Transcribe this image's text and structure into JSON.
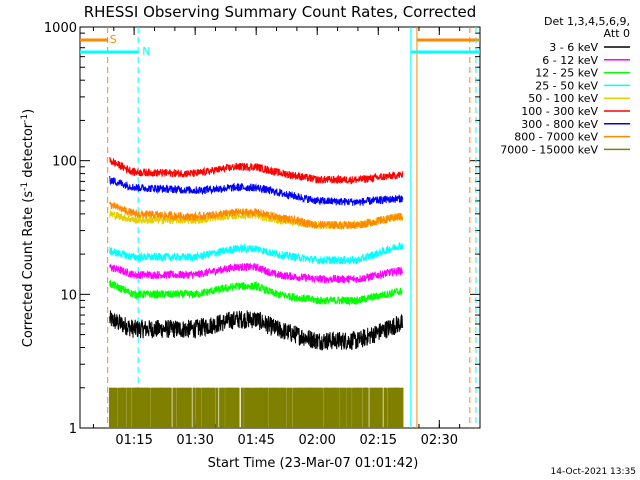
{
  "chart_data": {
    "type": "line",
    "title": "RHESSI Observing Summary Count Rates, Corrected",
    "xlabel": "Start Time (23-Mar-07 01:01:42)",
    "ylabel": "Corrected Count Rate (s⁻¹ detector⁻¹)",
    "ylabel_main": "Corrected Count Rate (s",
    "ylabel_sup1": "-1",
    "ylabel_mid": " detector",
    "ylabel_sup2": "-1",
    "ylabel_end": ")",
    "y_scale": "log",
    "ylim": [
      1,
      1000
    ],
    "xlim": [
      "01:01:42",
      "02:40:00"
    ],
    "x_tick_labels": [
      "01:15",
      "01:30",
      "01:45",
      "02:00",
      "02:15",
      "02:30"
    ],
    "x_tick_values": [
      "01:15",
      "01:30",
      "01:45",
      "02:00",
      "02:15",
      "02:30"
    ],
    "y_tick_labels": [
      "1",
      "10",
      "100",
      "1000"
    ],
    "y_tick_values": [
      1,
      10,
      100,
      1000
    ],
    "legend_header": [
      "Det 1,3,4,5,6,9,",
      "Att 0"
    ],
    "legend_placement": "right",
    "data_start": "01:09:00",
    "data_end": "02:21:00",
    "series": [
      {
        "name": "3 - 6 keV",
        "color": "#000000",
        "x": [
          "01:09",
          "01:15",
          "01:30",
          "01:40",
          "01:45",
          "01:50",
          "02:00",
          "02:10",
          "02:20"
        ],
        "values": [
          6.5,
          5.5,
          5.5,
          6.5,
          6.5,
          5.5,
          4.5,
          4.5,
          6.0
        ]
      },
      {
        "name": "6 - 12 keV",
        "color": "#ff00ff",
        "x": [
          "01:09",
          "01:15",
          "01:30",
          "01:40",
          "01:45",
          "01:50",
          "02:00",
          "02:10",
          "02:20"
        ],
        "values": [
          16,
          14,
          14,
          16,
          16,
          14,
          13,
          13,
          15
        ]
      },
      {
        "name": "12 - 25 keV",
        "color": "#00ff00",
        "x": [
          "01:09",
          "01:15",
          "01:30",
          "01:40",
          "01:45",
          "01:50",
          "02:00",
          "02:10",
          "02:20"
        ],
        "values": [
          12,
          10,
          10,
          11.5,
          11.5,
          10,
          9,
          9,
          10.5
        ]
      },
      {
        "name": "25 - 50 keV",
        "color": "#00ffff",
        "x": [
          "01:09",
          "01:15",
          "01:30",
          "01:40",
          "01:45",
          "01:50",
          "02:00",
          "02:10",
          "02:20"
        ],
        "values": [
          21,
          19,
          19,
          22,
          22,
          20,
          18,
          18,
          23
        ]
      },
      {
        "name": "50 - 100 keV",
        "color": "#e6cf00",
        "x": [
          "01:09",
          "01:15",
          "01:30",
          "01:40",
          "01:45",
          "01:50",
          "02:00",
          "02:10",
          "02:20"
        ],
        "values": [
          40,
          36,
          36,
          39,
          39,
          36,
          33,
          33,
          38
        ]
      },
      {
        "name": "100 - 300 keV",
        "color": "#ff0000",
        "x": [
          "01:09",
          "01:15",
          "01:30",
          "01:40",
          "01:45",
          "01:50",
          "02:00",
          "02:10",
          "02:20"
        ],
        "values": [
          100,
          82,
          80,
          90,
          90,
          82,
          72,
          72,
          78
        ]
      },
      {
        "name": "300 - 800 keV",
        "color": "#0000ff",
        "x": [
          "01:09",
          "01:15",
          "01:30",
          "01:40",
          "01:45",
          "01:50",
          "02:00",
          "02:10",
          "02:20"
        ],
        "values": [
          72,
          63,
          60,
          63,
          63,
          58,
          50,
          49,
          52
        ]
      },
      {
        "name": "800 - 7000 keV",
        "color": "#ff8800",
        "x": [
          "01:09",
          "01:15",
          "01:30",
          "01:40",
          "01:45",
          "01:50",
          "02:00",
          "02:10",
          "02:20"
        ],
        "values": [
          47,
          40,
          38,
          41,
          41,
          38,
          33,
          33,
          38
        ]
      },
      {
        "name": "7000 - 15000 keV",
        "color": "#808000",
        "x": [
          "01:09",
          "02:21"
        ],
        "values": [
          2,
          2
        ]
      }
    ],
    "flags": [
      {
        "label": "S",
        "color": "#ff8800",
        "label_time": "01:09:00",
        "bars": [
          [
            "01:01:42",
            "01:08:30"
          ],
          [
            "02:24:30",
            "02:40:00"
          ]
        ],
        "level": 800,
        "vlines": [
          "01:08:30",
          "02:24:30",
          "02:37:30"
        ]
      },
      {
        "label": "N",
        "color": "#00ffff",
        "label_time": "01:17:00",
        "bars": [
          [
            "01:01:42",
            "01:16:00"
          ],
          [
            "02:23:00",
            "02:40:00"
          ]
        ],
        "level": 650,
        "vlines": [
          "01:16:00",
          "02:23:00",
          "02:39:00"
        ]
      }
    ],
    "grid": false
  },
  "timestamp": "14-Oct-2021 13:35"
}
